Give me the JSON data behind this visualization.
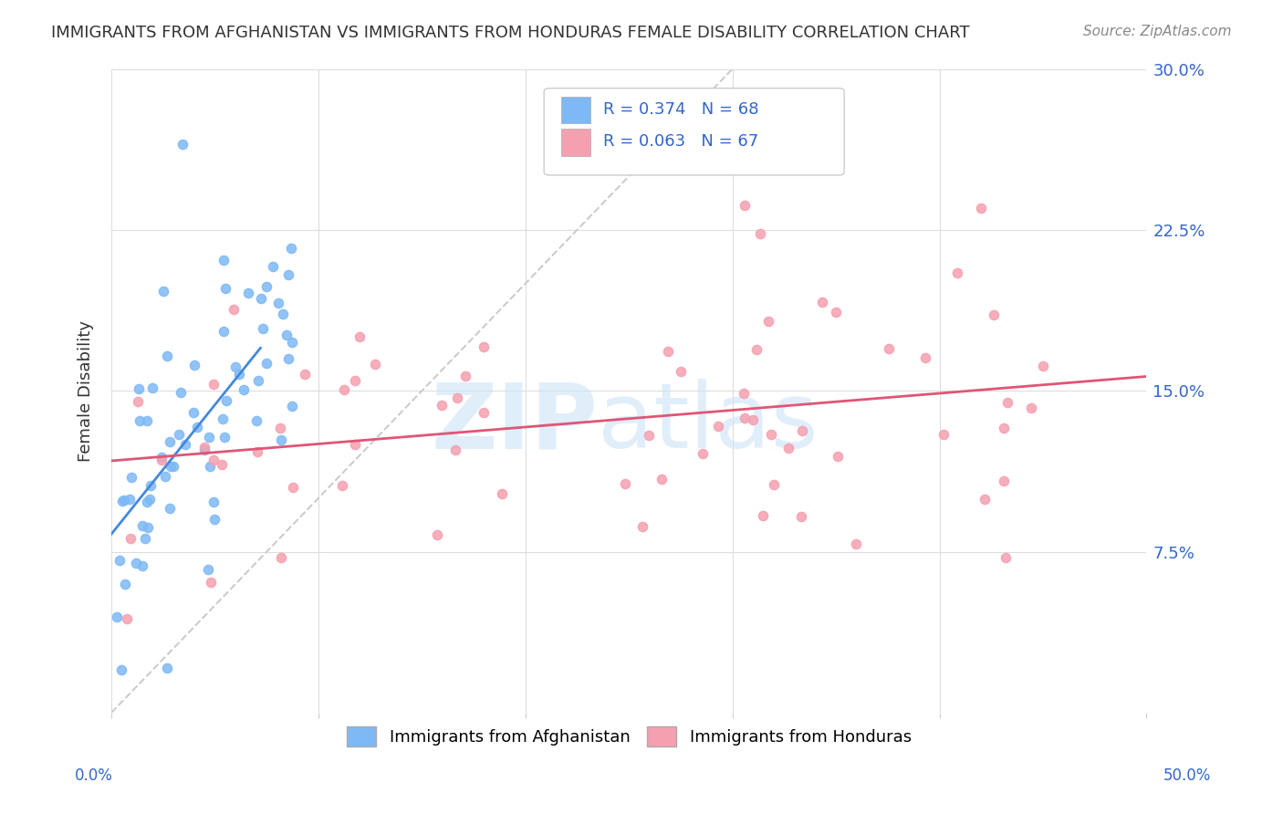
{
  "title": "IMMIGRANTS FROM AFGHANISTAN VS IMMIGRANTS FROM HONDURAS FEMALE DISABILITY CORRELATION CHART",
  "source": "Source: ZipAtlas.com",
  "ylabel": "Female Disability",
  "y_ticks": [
    0.0,
    0.075,
    0.15,
    0.225,
    0.3
  ],
  "y_tick_labels": [
    "",
    "7.5%",
    "15.0%",
    "22.5%",
    "30.0%"
  ],
  "x_lim": [
    0.0,
    0.5
  ],
  "y_lim": [
    0.0,
    0.3
  ],
  "afghanistan_color": "#7eb9f5",
  "honduras_color": "#f5a0b0",
  "afghanistan_line_color": "#4488dd",
  "honduras_line_color": "#e05575",
  "diagonal_color": "#cccccc",
  "R_afghanistan": 0.374,
  "N_afghanistan": 68,
  "R_honduras": 0.063,
  "N_honduras": 67,
  "legend_label_1": "Immigrants from Afghanistan",
  "legend_label_2": "Immigrants from Honduras"
}
